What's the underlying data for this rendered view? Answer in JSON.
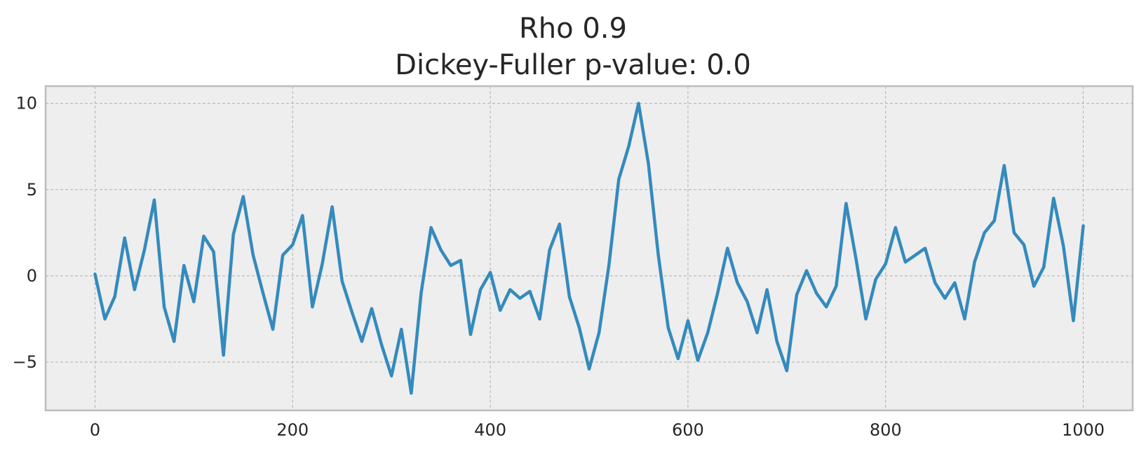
{
  "chart_data": {
    "type": "line",
    "title_line1": "Rho 0.9",
    "title_line2": "Dickey-Fuller p-value: 0.0",
    "xlabel": "",
    "ylabel": "",
    "xlim": [
      -50,
      1050
    ],
    "ylim": [
      -7.8,
      11.0
    ],
    "xticks": [
      0,
      200,
      400,
      600,
      800,
      1000
    ],
    "yticks": [
      -5,
      0,
      5,
      10
    ],
    "ytick_labels": [
      "−5",
      "0",
      "5",
      "10"
    ],
    "grid": true,
    "legend": "none",
    "colors": {
      "line": "#348abd",
      "plot_bg": "#eeeeee",
      "frame": "#bcbcbc",
      "text": "#262626"
    },
    "series": [
      {
        "x": [
          0,
          10,
          20,
          30,
          40,
          50,
          60,
          70,
          80,
          90,
          100,
          110,
          120,
          130,
          140,
          150,
          160,
          170,
          180,
          190,
          200,
          210,
          220,
          230,
          240,
          250,
          260,
          270,
          280,
          290,
          300,
          310,
          320,
          330,
          340,
          350,
          360,
          370,
          380,
          390,
          400,
          410,
          420,
          430,
          440,
          450,
          460,
          470,
          480,
          490,
          500,
          510,
          520,
          530,
          540,
          550,
          560,
          570,
          580,
          590,
          600,
          610,
          620,
          630,
          640,
          650,
          660,
          670,
          680,
          690,
          700,
          710,
          720,
          730,
          740,
          750,
          760,
          770,
          780,
          790,
          800,
          810,
          820,
          830,
          840,
          850,
          860,
          870,
          880,
          890,
          900,
          910,
          920,
          930,
          940,
          950,
          960,
          970,
          980,
          990,
          1000
        ],
        "y": [
          0.1,
          -2.5,
          -1.2,
          2.2,
          -0.8,
          1.5,
          4.4,
          -1.8,
          -3.8,
          0.6,
          -1.5,
          2.3,
          1.4,
          -4.6,
          2.4,
          4.6,
          1.2,
          -1.0,
          -3.1,
          1.2,
          1.8,
          3.5,
          -1.8,
          0.7,
          4.0,
          -0.3,
          -2.1,
          -3.8,
          -1.9,
          -4.0,
          -5.8,
          -3.1,
          -6.8,
          -1.0,
          2.8,
          1.5,
          0.6,
          0.9,
          -3.4,
          -0.8,
          0.2,
          -2.0,
          -0.8,
          -1.3,
          -0.9,
          -2.5,
          1.5,
          3.0,
          -1.2,
          -3.0,
          -5.4,
          -3.3,
          0.6,
          5.6,
          7.5,
          10.0,
          6.5,
          1.2,
          -3.0,
          -4.8,
          -2.6,
          -4.9,
          -3.3,
          -1.0,
          1.6,
          -0.4,
          -1.5,
          -3.3,
          -0.8,
          -3.8,
          -5.5,
          -1.1,
          0.3,
          -1.0,
          -1.8,
          -0.6,
          4.2,
          1.0,
          -2.5,
          -0.2,
          0.7,
          2.8,
          0.8,
          1.2,
          1.6,
          -0.4,
          -1.3,
          -0.4,
          -2.5,
          0.8,
          2.5,
          3.2,
          6.4,
          2.5,
          1.8,
          -0.6,
          0.5,
          4.5,
          1.7,
          -2.6,
          2.9
        ]
      }
    ]
  }
}
